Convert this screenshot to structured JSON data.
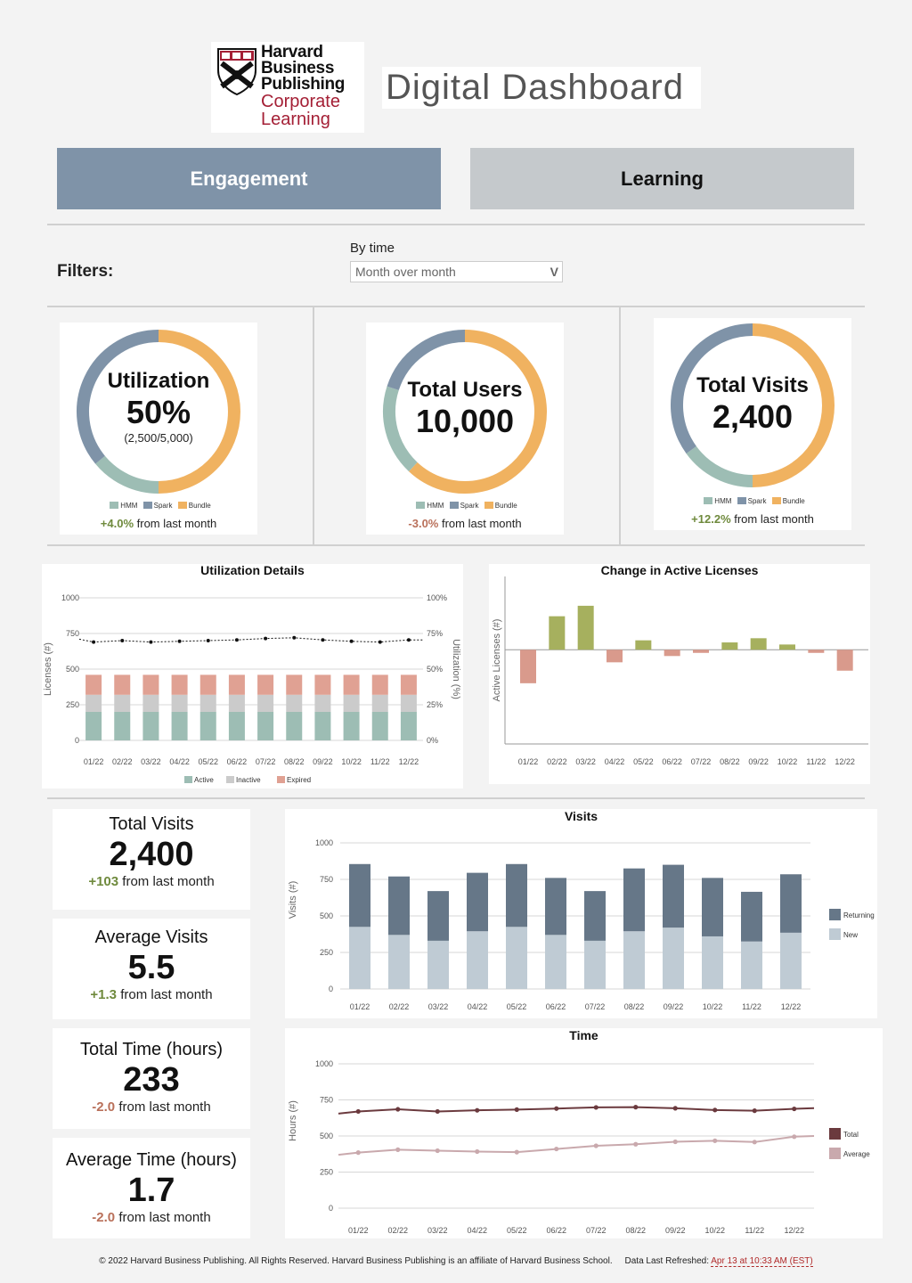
{
  "brand": {
    "logo_lines": [
      "Harvard",
      "Business",
      "Publishing",
      "Corporate",
      "Learning"
    ],
    "logo_color": "#a41f35"
  },
  "header": {
    "title": "Digital Dashboard"
  },
  "tabs": [
    {
      "label": "Engagement",
      "active": true
    },
    {
      "label": "Learning",
      "active": false
    }
  ],
  "filters": {
    "label": "Filters:",
    "by_time_label": "By time",
    "by_time_value": "Month over month",
    "chevron": "V"
  },
  "colors": {
    "hmm": "#9dbdb4",
    "spark": "#7f93a8",
    "bundle": "#f0b260",
    "active": "#9dbdb4",
    "inactive": "#cbcbcb",
    "expired": "#e0a193",
    "pos_bar": "#a6b05e",
    "neg_bar": "#d99a8c",
    "returning": "#667788",
    "new": "#bfcbd4",
    "total": "#6b3a3e",
    "average": "#c9a9ad",
    "positive_text": "#6f8a3d",
    "negative_text": "#b9705a"
  },
  "donuts": [
    {
      "label": "Utilization",
      "value": "50%",
      "sub": "(2,500/5,000)",
      "segments": [
        {
          "name": "HMM",
          "pct": 0.14
        },
        {
          "name": "Spark",
          "pct": 0.36
        },
        {
          "name": "Bundle",
          "pct": 0.5
        }
      ],
      "legend": [
        "HMM",
        "Spark",
        "Bundle"
      ],
      "delta": "+4.0%",
      "delta_dir": "pos",
      "delta_suffix": " from last month"
    },
    {
      "label": "Total Users",
      "value": "10,000",
      "sub": "",
      "segments": [
        {
          "name": "HMM",
          "pct": 0.18
        },
        {
          "name": "Spark",
          "pct": 0.2
        },
        {
          "name": "Bundle",
          "pct": 0.62
        }
      ],
      "legend": [
        "HMM",
        "Spark",
        "Bundle"
      ],
      "delta": "-3.0%",
      "delta_dir": "neg",
      "delta_suffix": " from last month"
    },
    {
      "label": "Total Visits",
      "value": "2,400",
      "sub": "",
      "segments": [
        {
          "name": "HMM",
          "pct": 0.15
        },
        {
          "name": "Spark",
          "pct": 0.35
        },
        {
          "name": "Bundle",
          "pct": 0.5
        }
      ],
      "legend": [
        "HMM",
        "Spark",
        "Bundle"
      ],
      "delta": "+12.2%",
      "delta_dir": "pos",
      "delta_suffix": " from last month"
    }
  ],
  "kpis": [
    {
      "label": "Total Visits",
      "value": "2,400",
      "delta": "+103",
      "delta_dir": "pos",
      "delta_suffix": " from last month"
    },
    {
      "label": "Average Visits",
      "value": "5.5",
      "delta": "+1.3",
      "delta_dir": "pos",
      "delta_suffix": " from last month"
    },
    {
      "label": "Total Time (hours)",
      "value": "233",
      "delta": "-2.0",
      "delta_dir": "neg",
      "delta_suffix": " from last month"
    },
    {
      "label": "Average Time (hours)",
      "value": "1.7",
      "delta": "-2.0",
      "delta_dir": "neg",
      "delta_suffix": " from last month"
    }
  ],
  "chart_data": [
    {
      "id": "utilization",
      "type": "bar",
      "title": "Utilization Details",
      "categories": [
        "01/22",
        "02/22",
        "03/22",
        "04/22",
        "05/22",
        "06/22",
        "07/22",
        "08/22",
        "09/22",
        "10/22",
        "11/22",
        "12/22"
      ],
      "series": [
        {
          "name": "Active",
          "values": [
            200,
            200,
            200,
            200,
            200,
            200,
            200,
            200,
            200,
            200,
            200,
            200
          ]
        },
        {
          "name": "Inactive",
          "values": [
            120,
            120,
            120,
            120,
            120,
            120,
            120,
            120,
            120,
            120,
            120,
            120
          ]
        },
        {
          "name": "Expired",
          "values": [
            140,
            140,
            140,
            140,
            140,
            140,
            140,
            140,
            140,
            140,
            140,
            140
          ]
        }
      ],
      "line_series": {
        "name": "Utilization",
        "values": [
          69,
          70,
          69,
          69.5,
          70,
          70.5,
          71.5,
          72,
          70.5,
          69.5,
          69,
          70.5
        ]
      },
      "ylabel": "Licenses (#)",
      "y2label": "Utilization (%)",
      "ylim": [
        0,
        1000
      ],
      "yticks": [
        "0",
        "250",
        "500",
        "750",
        "1000"
      ],
      "y2lim": [
        0,
        100
      ],
      "y2ticks": [
        "0%",
        "25%",
        "50%",
        "75%",
        "100%"
      ],
      "legend": [
        "Active",
        "Inactive",
        "Expired"
      ]
    },
    {
      "id": "active_licenses",
      "type": "bar",
      "title": "Change in Active Licenses",
      "categories": [
        "01/22",
        "02/22",
        "03/22",
        "04/22",
        "05/22",
        "06/22",
        "07/22",
        "08/22",
        "09/22",
        "10/22",
        "11/22",
        "12/22"
      ],
      "values": [
        -32,
        32,
        42,
        -12,
        9,
        -6,
        -3,
        7,
        11,
        5,
        -3,
        -20
      ],
      "ylabel": "Active Licenses (#)",
      "ylim": [
        -90,
        70
      ]
    },
    {
      "id": "visits",
      "type": "bar",
      "title": "Visits",
      "categories": [
        "01/22",
        "02/22",
        "03/22",
        "04/22",
        "05/22",
        "06/22",
        "07/22",
        "08/22",
        "09/22",
        "10/22",
        "11/22",
        "12/22"
      ],
      "series": [
        {
          "name": "New",
          "values": [
            425,
            370,
            330,
            395,
            425,
            370,
            330,
            395,
            420,
            360,
            325,
            385
          ]
        },
        {
          "name": "Returning",
          "values": [
            430,
            400,
            340,
            400,
            430,
            390,
            340,
            430,
            430,
            400,
            340,
            400
          ]
        }
      ],
      "ylabel": "Visits (#)",
      "ylim": [
        0,
        1000
      ],
      "yticks": [
        "0",
        "250",
        "500",
        "750",
        "1000"
      ],
      "legend": [
        "Returning",
        "New"
      ]
    },
    {
      "id": "time",
      "type": "line",
      "title": "Time",
      "categories": [
        "01/22",
        "02/22",
        "03/22",
        "04/22",
        "05/22",
        "06/22",
        "07/22",
        "08/22",
        "09/22",
        "10/22",
        "11/22",
        "12/22"
      ],
      "series": [
        {
          "name": "Total",
          "values": [
            670,
            685,
            670,
            678,
            683,
            690,
            698,
            700,
            692,
            680,
            675,
            688
          ]
        },
        {
          "name": "Average",
          "values": [
            385,
            405,
            398,
            392,
            388,
            410,
            432,
            443,
            460,
            467,
            458,
            495
          ]
        }
      ],
      "ylabel": "Hours (#)",
      "ylim": [
        0,
        1000
      ],
      "yticks": [
        "0",
        "250",
        "500",
        "750",
        "1000"
      ],
      "legend": [
        "Total",
        "Average"
      ]
    }
  ],
  "footer": {
    "text": "© 2022 Harvard Business Publishing. All Rights Reserved. Harvard Business Publishing is an affiliate of Harvard Business School.",
    "refresh_label": "Data Last Refreshed:",
    "refresh_value": "Apr 13 at 10:33 AM (EST)"
  }
}
